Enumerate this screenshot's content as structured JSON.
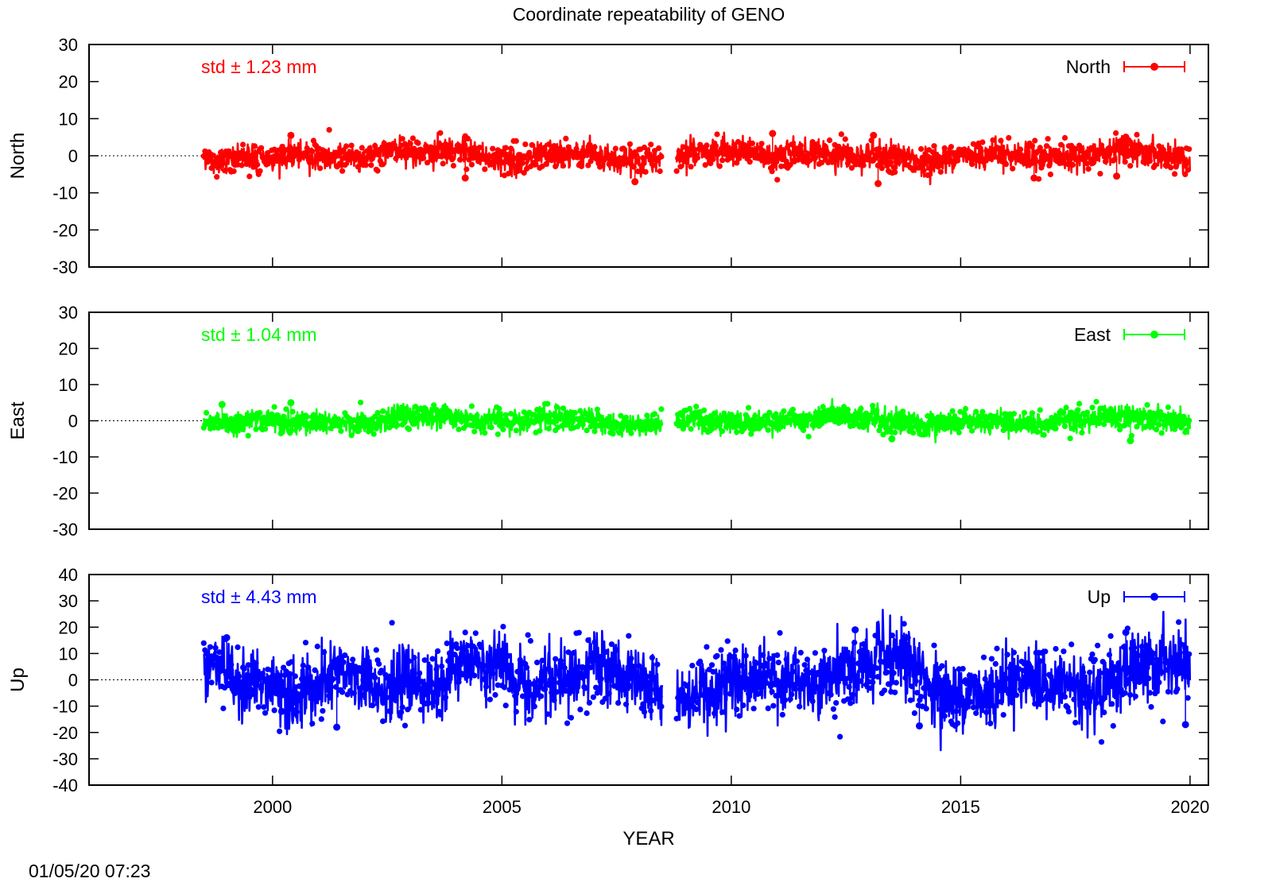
{
  "chart_data": {
    "type": "scatter",
    "title": "Coordinate repeatability of GENO",
    "xlabel": "YEAR",
    "xlim": [
      1996,
      2020.4
    ],
    "xticks": [
      "2000",
      "2005",
      "2010",
      "2015",
      "2020"
    ],
    "xtick_values": [
      2000,
      2005,
      2010,
      2015,
      2020
    ],
    "grid": false,
    "legend_placement": "top-right",
    "data_start": 1998.5,
    "data_end": 2020.0,
    "data_gap": [
      2008.5,
      2008.8
    ],
    "panels": [
      {
        "name": "North",
        "ylabel": "North",
        "legend": "North",
        "color": "#ff0000",
        "std_text": "std ± 1.23 mm",
        "ylim": [
          -30,
          30
        ],
        "yticks": [
          "30",
          "20",
          "10",
          "0",
          "-10",
          "-20",
          "-30"
        ],
        "ytick_values": [
          30,
          20,
          10,
          0,
          -10,
          -20,
          -30
        ],
        "std": 1.23,
        "outliers": [
          [
            2000.4,
            5.5
          ],
          [
            2007.9,
            -7.0
          ],
          [
            2010.9,
            6.0
          ],
          [
            2013.1,
            5.5
          ],
          [
            2013.2,
            -7.5
          ],
          [
            2004.2,
            -6.0
          ],
          [
            2016.6,
            -6.0
          ],
          [
            2018.6,
            5.0
          ],
          [
            2018.4,
            -5.5
          ]
        ]
      },
      {
        "name": "East",
        "ylabel": "East",
        "legend": "East",
        "color": "#00ff00",
        "std_text": "std ± 1.04 mm",
        "ylim": [
          -30,
          30
        ],
        "yticks": [
          "30",
          "20",
          "10",
          "0",
          "-10",
          "-20",
          "-30"
        ],
        "ytick_values": [
          30,
          20,
          10,
          0,
          -10,
          -20,
          -30
        ],
        "std": 1.04,
        "outliers": [
          [
            2000.4,
            5.0
          ],
          [
            1998.9,
            4.5
          ],
          [
            2013.5,
            -5.0
          ],
          [
            2018.7,
            -5.5
          ]
        ]
      },
      {
        "name": "Up",
        "ylabel": "Up",
        "legend": "Up",
        "color": "#0000ff",
        "std_text": "std ± 4.43 mm",
        "ylim": [
          -40,
          40
        ],
        "yticks": [
          "40",
          "30",
          "20",
          "10",
          "0",
          "-10",
          "-20",
          "-30",
          "-40"
        ],
        "ytick_values": [
          40,
          30,
          20,
          10,
          0,
          -10,
          -20,
          -30,
          -40
        ],
        "std": 4.43,
        "outliers": [
          [
            2001.4,
            -18.0
          ],
          [
            2012.7,
            19.0
          ],
          [
            2014.1,
            -17.5
          ],
          [
            2018.6,
            18.0
          ],
          [
            2019.9,
            -17.0
          ],
          [
            2000.2,
            -12
          ],
          [
            1999.0,
            16
          ]
        ]
      }
    ]
  },
  "timestamp": "01/05/20 07:23"
}
